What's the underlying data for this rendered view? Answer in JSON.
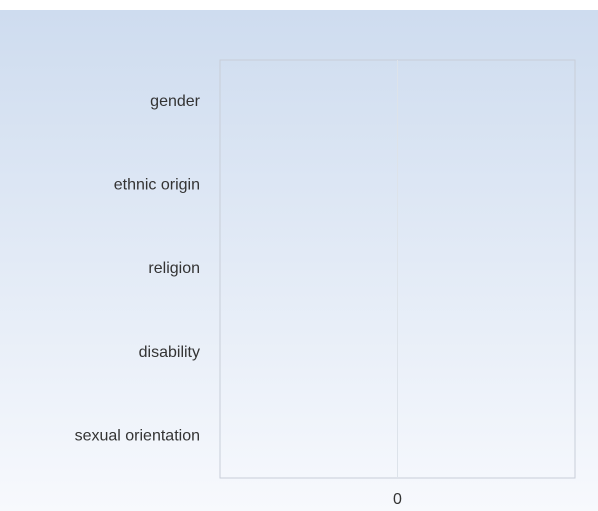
{
  "chart_data": {
    "type": "bar",
    "orientation": "horizontal",
    "categories": [
      "gender",
      "ethnic origin",
      "religion",
      "disability",
      "sexual orientation"
    ],
    "values": [
      0,
      0,
      0,
      0,
      0
    ],
    "color": "#ffffff",
    "xlim": [
      -1,
      1
    ],
    "xticks": [
      0
    ],
    "grid": true
  }
}
